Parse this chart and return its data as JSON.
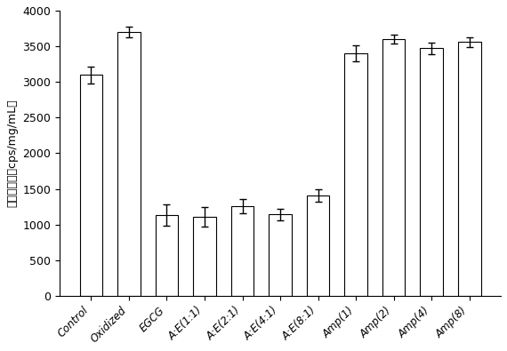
{
  "categories": [
    "Control",
    "Oxidized",
    "EGCG",
    "A:E(1:1)",
    "A:E(2:1)",
    "A:E(4:1)",
    "A:E(8:1)",
    "Amp(1)",
    "Amp(2)",
    "Amp(4)",
    "Amp(8)"
  ],
  "values": [
    3100,
    3700,
    1130,
    1110,
    1260,
    1140,
    1410,
    3400,
    3600,
    3470,
    3560
  ],
  "errors": [
    120,
    70,
    150,
    140,
    100,
    80,
    90,
    110,
    60,
    80,
    70
  ],
  "ylabel": "表面疏水性（cps/mg/mL）",
  "ylim": [
    0,
    4000
  ],
  "yticks": [
    0,
    500,
    1000,
    1500,
    2000,
    2500,
    3000,
    3500,
    4000
  ],
  "bar_color": "#ffffff",
  "bar_edgecolor": "#000000",
  "bar_width": 0.6,
  "capsize": 3,
  "figsize": [
    5.7,
    3.95
  ],
  "dpi": 100
}
